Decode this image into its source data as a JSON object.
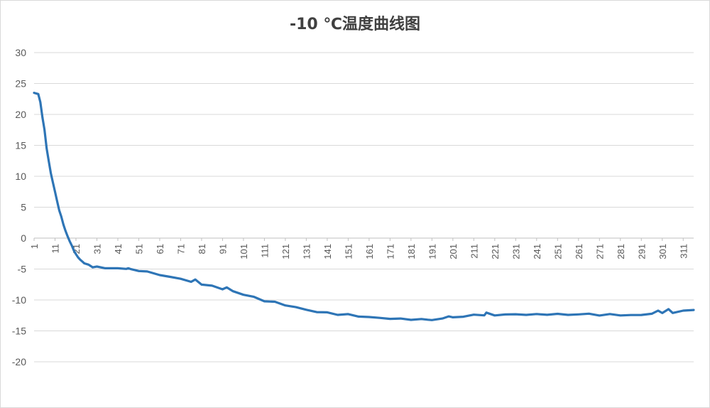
{
  "chart_data": {
    "type": "line",
    "title": "-10 ℃温度曲线图",
    "xlabel": "",
    "ylabel": "",
    "ylim": [
      -20,
      30
    ],
    "yticks": [
      "30",
      "25",
      "20",
      "15",
      "10",
      "5",
      "0",
      "-5",
      "-10",
      "-15",
      "-20"
    ],
    "xticks": [
      "1",
      "11",
      "21",
      "31",
      "41",
      "51",
      "61",
      "71",
      "81",
      "91",
      "101",
      "111",
      "121",
      "131",
      "141",
      "151",
      "161",
      "171",
      "181",
      "191",
      "201",
      "211",
      "221",
      "231",
      "241",
      "251",
      "261",
      "271",
      "281",
      "291",
      "301",
      "311"
    ],
    "grid": true,
    "legend": "none",
    "series_color": "#2E75B6",
    "x": [
      1,
      3,
      4,
      5,
      6,
      7,
      8,
      9,
      10,
      11,
      12,
      13,
      14,
      15,
      16,
      17,
      18,
      19,
      20,
      21,
      22,
      23,
      24,
      25,
      27,
      29,
      31,
      35,
      41,
      45,
      46,
      47,
      51,
      55,
      61,
      66,
      71,
      76,
      78,
      81,
      86,
      91,
      93,
      96,
      101,
      106,
      111,
      116,
      121,
      126,
      131,
      136,
      141,
      146,
      151,
      156,
      161,
      166,
      171,
      176,
      181,
      186,
      189,
      191,
      196,
      199,
      201,
      206,
      211,
      216,
      217,
      221,
      226,
      231,
      236,
      241,
      246,
      251,
      256,
      261,
      266,
      271,
      276,
      281,
      286,
      291,
      296,
      299,
      301,
      304,
      306,
      311,
      316
    ],
    "y": [
      23.5,
      23.3,
      22,
      19.5,
      17.5,
      14.5,
      12.5,
      10.5,
      9,
      7.5,
      6,
      4.5,
      3.5,
      2.2,
      1.2,
      0.3,
      -0.5,
      -1.2,
      -2,
      -2.6,
      -3.1,
      -3.5,
      -3.8,
      -4,
      -4.4,
      -4.6,
      -4.7,
      -4.8,
      -4.9,
      -5,
      -4.8,
      -5.1,
      -5.2,
      -5.5,
      -5.9,
      -6.3,
      -6.6,
      -7,
      -6.8,
      -7.4,
      -7.8,
      -8.2,
      -8,
      -8.6,
      -9.1,
      -9.6,
      -10.1,
      -10.4,
      -10.8,
      -11.2,
      -11.6,
      -11.9,
      -12.1,
      -12.3,
      -12.4,
      -12.6,
      -12.8,
      -12.9,
      -13,
      -13.1,
      -13.1,
      -13.2,
      -13.1,
      -13.3,
      -13,
      -12.6,
      -12.9,
      -12.6,
      -12.5,
      -12.4,
      -12.1,
      -12.5,
      -12.3,
      -12.4,
      -12.3,
      -12.4,
      -12.3,
      -12.3,
      -12.4,
      -12.3,
      -12.3,
      -12.4,
      -12.4,
      -12.4,
      -12.5,
      -12.4,
      -12.2,
      -11.8,
      -12.0,
      -11.6,
      -12.0,
      -11.8,
      -11.6
    ]
  }
}
